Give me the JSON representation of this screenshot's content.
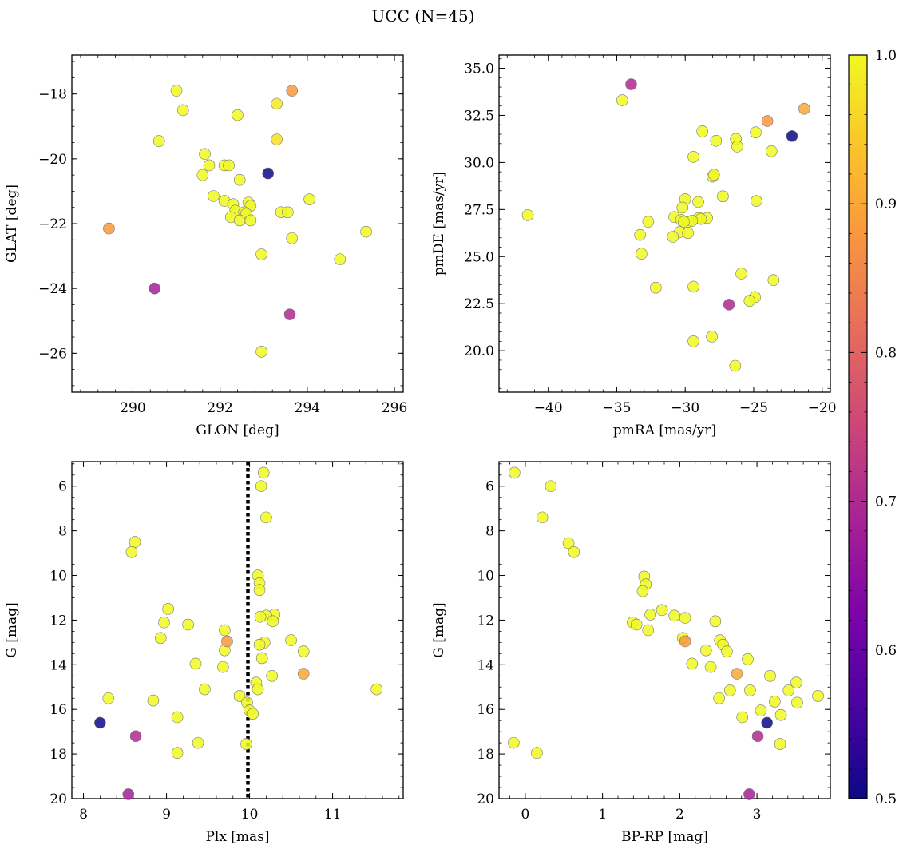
{
  "title": "UCC (N=45)",
  "colorbar": {
    "min": 0.5,
    "max": 1.0,
    "ticks": [
      0.5,
      0.6,
      0.7,
      0.8,
      0.9,
      1.0
    ],
    "tick_labels": [
      "0.5",
      "0.6",
      "0.7",
      "0.8",
      "0.9",
      "1.0"
    ],
    "colormap": "plasma"
  },
  "chart_data": [
    {
      "type": "scatter",
      "name": "glon-glat",
      "xlabel": "GLON [deg]",
      "ylabel": "GLAT [deg]",
      "xlim": [
        288.6,
        296.2
      ],
      "ylim": [
        -27.2,
        -16.8
      ],
      "y_inverted": false,
      "xticks": [
        290,
        292,
        294,
        296
      ],
      "yticks": [
        -26,
        -24,
        -22,
        -20,
        -18
      ],
      "xtick_labels": [
        "290",
        "292",
        "294",
        "296"
      ],
      "ytick_labels": [
        "−26",
        "−24",
        "−22",
        "−20",
        "−18"
      ],
      "points": [
        [
          291.0,
          -17.9,
          1.0
        ],
        [
          293.65,
          -17.9,
          0.88
        ],
        [
          291.15,
          -18.5,
          1.0
        ],
        [
          293.3,
          -18.3,
          0.98
        ],
        [
          292.4,
          -18.65,
          1.0
        ],
        [
          290.6,
          -19.45,
          1.0
        ],
        [
          293.3,
          -19.4,
          0.97
        ],
        [
          291.65,
          -19.85,
          1.0
        ],
        [
          291.75,
          -20.2,
          1.0
        ],
        [
          292.1,
          -20.2,
          1.0
        ],
        [
          292.2,
          -20.2,
          1.0
        ],
        [
          293.1,
          -20.45,
          0.5
        ],
        [
          291.6,
          -20.5,
          1.0
        ],
        [
          292.45,
          -20.65,
          1.0
        ],
        [
          291.85,
          -21.15,
          1.0
        ],
        [
          292.1,
          -21.3,
          1.0
        ],
        [
          292.3,
          -21.4,
          1.0
        ],
        [
          292.65,
          -21.35,
          1.0
        ],
        [
          292.7,
          -21.45,
          1.0
        ],
        [
          292.35,
          -21.6,
          1.0
        ],
        [
          292.55,
          -21.65,
          1.0
        ],
        [
          292.6,
          -21.7,
          1.0
        ],
        [
          292.25,
          -21.8,
          1.0
        ],
        [
          292.45,
          -21.9,
          1.0
        ],
        [
          292.7,
          -21.9,
          1.0
        ],
        [
          293.4,
          -21.65,
          1.0
        ],
        [
          293.55,
          -21.65,
          1.0
        ],
        [
          294.05,
          -21.25,
          1.0
        ],
        [
          289.45,
          -22.15,
          0.88
        ],
        [
          293.65,
          -22.45,
          1.0
        ],
        [
          295.35,
          -22.25,
          1.0
        ],
        [
          292.95,
          -22.95,
          1.0
        ],
        [
          294.75,
          -23.1,
          1.0
        ],
        [
          290.5,
          -24.0,
          0.68
        ],
        [
          293.6,
          -24.8,
          0.7
        ],
        [
          292.95,
          -25.95,
          1.0
        ]
      ]
    },
    {
      "type": "scatter",
      "name": "pmra-pmde",
      "xlabel": "pmRA [mas/yr]",
      "ylabel": "pmDE [mas/yr]",
      "xlim": [
        -43.6,
        -19.4
      ],
      "ylim": [
        17.8,
        35.7
      ],
      "y_inverted": false,
      "xticks": [
        -40,
        -35,
        -30,
        -25,
        -20
      ],
      "yticks": [
        20.0,
        22.5,
        25.0,
        27.5,
        30.0,
        32.5,
        35.0
      ],
      "xtick_labels": [
        "−40",
        "−35",
        "−30",
        "−25",
        "−20"
      ],
      "ytick_labels": [
        "20.0",
        "22.5",
        "25.0",
        "27.5",
        "30.0",
        "32.5",
        "35.0"
      ],
      "points": [
        [
          -33.95,
          34.15,
          0.7
        ],
        [
          -34.6,
          33.3,
          1.0
        ],
        [
          -21.3,
          32.85,
          0.9
        ],
        [
          -24.0,
          32.2,
          0.88
        ],
        [
          -22.2,
          31.4,
          0.5
        ],
        [
          -28.75,
          31.65,
          1.0
        ],
        [
          -24.85,
          31.6,
          1.0
        ],
        [
          -26.3,
          31.25,
          1.0
        ],
        [
          -27.75,
          31.15,
          1.0
        ],
        [
          -26.2,
          30.85,
          1.0
        ],
        [
          -23.7,
          30.6,
          1.0
        ],
        [
          -29.4,
          30.3,
          1.0
        ],
        [
          -28.0,
          29.25,
          1.0
        ],
        [
          -27.9,
          29.35,
          1.0
        ],
        [
          -30.0,
          28.05,
          1.0
        ],
        [
          -27.25,
          28.2,
          1.0
        ],
        [
          -29.05,
          27.9,
          1.0
        ],
        [
          -24.8,
          27.95,
          1.0
        ],
        [
          -30.2,
          27.6,
          1.0
        ],
        [
          -41.5,
          27.2,
          1.0
        ],
        [
          -30.8,
          27.1,
          1.0
        ],
        [
          -29.0,
          27.05,
          1.0
        ],
        [
          -28.4,
          27.05,
          1.0
        ],
        [
          -28.85,
          27.0,
          1.0
        ],
        [
          -30.3,
          26.95,
          1.0
        ],
        [
          -29.8,
          26.85,
          1.0
        ],
        [
          -29.5,
          26.9,
          1.0
        ],
        [
          -30.1,
          26.85,
          1.0
        ],
        [
          -32.7,
          26.85,
          1.0
        ],
        [
          -30.4,
          26.3,
          1.0
        ],
        [
          -29.8,
          26.25,
          1.0
        ],
        [
          -30.9,
          26.05,
          1.0
        ],
        [
          -33.3,
          26.15,
          1.0
        ],
        [
          -33.2,
          25.15,
          1.0
        ],
        [
          -25.9,
          24.1,
          1.0
        ],
        [
          -23.55,
          23.75,
          1.0
        ],
        [
          -32.15,
          23.35,
          1.0
        ],
        [
          -29.4,
          23.4,
          1.0
        ],
        [
          -24.9,
          22.85,
          1.0
        ],
        [
          -25.3,
          22.65,
          1.0
        ],
        [
          -26.8,
          22.45,
          0.7
        ],
        [
          -28.05,
          20.75,
          1.0
        ],
        [
          -29.4,
          20.5,
          1.0
        ],
        [
          -26.35,
          19.2,
          1.0
        ]
      ]
    },
    {
      "type": "scatter",
      "name": "plx-g",
      "xlabel": "Plx [mas]",
      "ylabel": "G [mag]",
      "xlim": [
        7.86,
        11.85
      ],
      "ylim": [
        20.0,
        4.9
      ],
      "y_inverted": true,
      "vline": 9.98,
      "xticks": [
        8,
        9,
        10,
        11
      ],
      "yticks": [
        6,
        8,
        10,
        12,
        14,
        16,
        18,
        20
      ],
      "xtick_labels": [
        "8",
        "9",
        "10",
        "11"
      ],
      "ytick_labels": [
        "6",
        "8",
        "10",
        "12",
        "14",
        "16",
        "18",
        "20"
      ],
      "points": [
        [
          10.17,
          5.4,
          1.0
        ],
        [
          10.14,
          6.0,
          1.0
        ],
        [
          10.2,
          7.4,
          1.0
        ],
        [
          8.62,
          8.5,
          1.0
        ],
        [
          8.58,
          8.95,
          1.0
        ],
        [
          10.1,
          10.0,
          1.0
        ],
        [
          10.12,
          10.35,
          1.0
        ],
        [
          10.12,
          10.65,
          1.0
        ],
        [
          9.02,
          11.5,
          1.0
        ],
        [
          10.3,
          11.75,
          1.0
        ],
        [
          10.2,
          11.8,
          1.0
        ],
        [
          10.13,
          11.85,
          1.0
        ],
        [
          8.97,
          12.1,
          1.0
        ],
        [
          10.28,
          12.05,
          1.0
        ],
        [
          9.26,
          12.2,
          1.0
        ],
        [
          9.7,
          12.45,
          1.0
        ],
        [
          8.93,
          12.8,
          1.0
        ],
        [
          10.5,
          12.9,
          1.0
        ],
        [
          9.73,
          12.95,
          0.88
        ],
        [
          10.18,
          13.0,
          1.0
        ],
        [
          10.12,
          13.1,
          1.0
        ],
        [
          9.7,
          13.35,
          1.0
        ],
        [
          10.65,
          13.4,
          1.0
        ],
        [
          10.15,
          13.7,
          1.0
        ],
        [
          9.35,
          13.95,
          1.0
        ],
        [
          9.68,
          14.1,
          1.0
        ],
        [
          10.65,
          14.4,
          0.9
        ],
        [
          10.27,
          14.5,
          1.0
        ],
        [
          10.08,
          14.8,
          1.0
        ],
        [
          9.46,
          15.1,
          1.0
        ],
        [
          10.1,
          15.1,
          1.0
        ],
        [
          11.53,
          15.1,
          1.0
        ],
        [
          9.88,
          15.4,
          1.0
        ],
        [
          8.3,
          15.5,
          1.0
        ],
        [
          8.84,
          15.6,
          1.0
        ],
        [
          9.97,
          15.7,
          1.0
        ],
        [
          10.0,
          16.05,
          1.0
        ],
        [
          10.04,
          16.2,
          1.0
        ],
        [
          9.13,
          16.35,
          1.0
        ],
        [
          8.2,
          16.6,
          0.5
        ],
        [
          8.63,
          17.2,
          0.7
        ],
        [
          9.38,
          17.5,
          1.0
        ],
        [
          9.96,
          17.55,
          1.0
        ],
        [
          9.13,
          17.95,
          1.0
        ],
        [
          8.54,
          19.8,
          0.68
        ]
      ]
    },
    {
      "type": "scatter",
      "name": "bprp-g",
      "xlabel": "BP-RP [mag]",
      "ylabel": "G [mag]",
      "xlim": [
        -0.34,
        3.95
      ],
      "ylim": [
        20.0,
        4.9
      ],
      "y_inverted": true,
      "xticks": [
        0,
        1,
        2,
        3
      ],
      "yticks": [
        6,
        8,
        10,
        12,
        14,
        16,
        18,
        20
      ],
      "xtick_labels": [
        "0",
        "1",
        "2",
        "3"
      ],
      "ytick_labels": [
        "6",
        "8",
        "10",
        "12",
        "14",
        "16",
        "18",
        "20"
      ],
      "points": [
        [
          -0.14,
          5.4,
          1.0
        ],
        [
          0.33,
          6.0,
          1.0
        ],
        [
          0.22,
          7.4,
          1.0
        ],
        [
          0.56,
          8.55,
          1.0
        ],
        [
          0.63,
          8.95,
          1.0
        ],
        [
          1.54,
          10.05,
          1.0
        ],
        [
          1.56,
          10.4,
          1.0
        ],
        [
          1.52,
          10.7,
          1.0
        ],
        [
          1.77,
          11.55,
          1.0
        ],
        [
          1.62,
          11.75,
          1.0
        ],
        [
          1.93,
          11.8,
          1.0
        ],
        [
          2.07,
          11.9,
          1.0
        ],
        [
          1.39,
          12.1,
          1.0
        ],
        [
          1.44,
          12.2,
          1.0
        ],
        [
          1.59,
          12.45,
          1.0
        ],
        [
          2.46,
          12.05,
          1.0
        ],
        [
          2.04,
          12.8,
          1.0
        ],
        [
          2.07,
          12.95,
          0.88
        ],
        [
          2.52,
          12.9,
          1.0
        ],
        [
          2.56,
          13.1,
          1.0
        ],
        [
          2.34,
          13.35,
          1.0
        ],
        [
          2.61,
          13.4,
          1.0
        ],
        [
          2.88,
          13.75,
          1.0
        ],
        [
          2.16,
          13.95,
          1.0
        ],
        [
          2.4,
          14.1,
          1.0
        ],
        [
          2.74,
          14.4,
          0.9
        ],
        [
          3.17,
          14.5,
          1.0
        ],
        [
          3.51,
          14.8,
          1.0
        ],
        [
          2.65,
          15.15,
          1.0
        ],
        [
          2.91,
          15.15,
          1.0
        ],
        [
          3.41,
          15.15,
          1.0
        ],
        [
          2.51,
          15.5,
          1.0
        ],
        [
          3.79,
          15.4,
          1.0
        ],
        [
          3.23,
          15.65,
          1.0
        ],
        [
          3.52,
          15.7,
          1.0
        ],
        [
          3.05,
          16.05,
          1.0
        ],
        [
          3.31,
          16.25,
          1.0
        ],
        [
          2.81,
          16.35,
          1.0
        ],
        [
          3.13,
          16.6,
          0.5
        ],
        [
          3.01,
          17.2,
          0.7
        ],
        [
          -0.15,
          17.5,
          1.0
        ],
        [
          3.3,
          17.55,
          1.0
        ],
        [
          0.15,
          17.95,
          1.0
        ],
        [
          2.9,
          19.8,
          0.68
        ]
      ]
    }
  ]
}
